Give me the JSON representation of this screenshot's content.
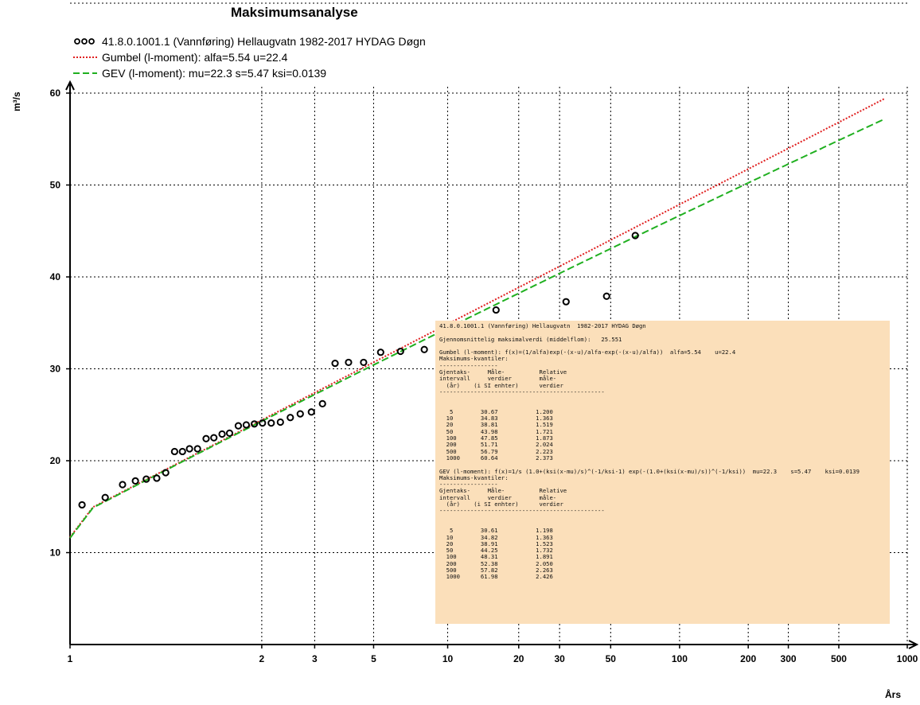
{
  "chart_data": {
    "type": "scatter",
    "title": "Maksimumsanalyse",
    "ylabel": "m³/s",
    "xlabel": "Års",
    "x_scale": "gumbel-return-period",
    "xlim": [
      1,
      1000
    ],
    "ylim": [
      0,
      60
    ],
    "grid": true,
    "x_ticks": [
      1,
      2,
      3,
      5,
      10,
      20,
      30,
      50,
      100,
      200,
      300,
      500,
      1000
    ],
    "y_ticks": [
      10,
      20,
      30,
      40,
      50,
      60
    ],
    "legend_position": "top-left",
    "series": [
      {
        "name": "41.8.0.1001.1 (Vannføring) Hellaugvatn  1982-2017 HYDAG Døgn",
        "kind": "points",
        "color": "#000000",
        "points": [
          [
            1.014,
            15.2
          ],
          [
            1.035,
            16.0
          ],
          [
            1.062,
            17.4
          ],
          [
            1.09,
            17.8
          ],
          [
            1.12,
            18.0
          ],
          [
            1.155,
            18.1
          ],
          [
            1.19,
            18.7
          ],
          [
            1.23,
            21.0
          ],
          [
            1.27,
            21.0
          ],
          [
            1.31,
            21.3
          ],
          [
            1.36,
            21.3
          ],
          [
            1.42,
            22.4
          ],
          [
            1.48,
            22.5
          ],
          [
            1.55,
            22.9
          ],
          [
            1.62,
            23.0
          ],
          [
            1.71,
            23.8
          ],
          [
            1.8,
            23.9
          ],
          [
            1.9,
            24.0
          ],
          [
            2.01,
            24.1
          ],
          [
            2.14,
            24.1
          ],
          [
            2.29,
            24.2
          ],
          [
            2.47,
            24.7
          ],
          [
            2.67,
            25.1
          ],
          [
            2.92,
            25.3
          ],
          [
            3.2,
            26.2
          ],
          [
            3.56,
            30.6
          ],
          [
            4.0,
            30.7
          ],
          [
            4.57,
            30.7
          ],
          [
            5.33,
            31.8
          ],
          [
            6.4,
            31.9
          ],
          [
            8.0,
            32.1
          ],
          [
            10.7,
            34.7
          ],
          [
            16.0,
            36.4
          ],
          [
            32.0,
            37.3
          ],
          [
            48,
            37.9
          ],
          [
            64,
            44.5
          ]
        ]
      },
      {
        "name": "Gumbel (l-moment): alfa=5.54    u=22.4",
        "kind": "line",
        "color": "#e02020",
        "dash": "dotted",
        "alpha": 5.54,
        "u": 22.4
      },
      {
        "name": "GEV (l-moment): mu=22.3    s=5.47    ksi=0.0139",
        "kind": "line",
        "color": "#20b020",
        "dash": "dashed",
        "mu": 22.3,
        "s": 5.47,
        "ksi": 0.0139
      }
    ],
    "info_text": [
      "41.8.0.1001.1 (Vannføring) Hellaugvatn  1982-2017 HYDAG Døgn",
      "",
      "Gjennomsnittelig maksimalverdi (middelflom):   25.551",
      "",
      "Gumbel (l-moment): f(x)=(1/alfa)exp(-(x-u)/alfa-exp(-(x-u)/alfa))  alfa=5.54    u=22.4",
      "Maksimums-kvantiler:",
      "-----------------",
      "Gjentaks-     Måle-          Relative",
      "intervall     verdier        måle-",
      "  (år)    (i SI enhter)      verdier",
      "------------------------------------------------",
      "",
      "",
      "   5        30.67           1.200",
      "  10        34.83           1.363",
      "  20        38.81           1.519",
      "  50        43.98           1.721",
      "  100       47.85           1.873",
      "  200       51.71           2.024",
      "  500       56.79           2.223",
      "  1000      60.64           2.373",
      "",
      "GEV (l-moment): f(x)=1/s (1.0+(ksi(x-mu)/s)^(-1/ksi-1) exp(-(1.0+(ksi(x-mu)/s))^(-1/ksi))  mu=22.3    s=5.47    ksi=0.0139",
      "Maksimums-kvantiler:",
      "-----------------",
      "Gjentaks-     Måle-          Relative",
      "intervall     verdier        måle-",
      "  (år)    (i SI enhter)      verdier",
      "------------------------------------------------",
      "",
      "",
      "   5        30.61           1.198",
      "  10        34.82           1.363",
      "  20        38.91           1.523",
      "  50        44.25           1.732",
      "  100       48.31           1.891",
      "  200       52.38           2.050",
      "  500       57.82           2.263",
      "  1000      61.98           2.426"
    ]
  }
}
